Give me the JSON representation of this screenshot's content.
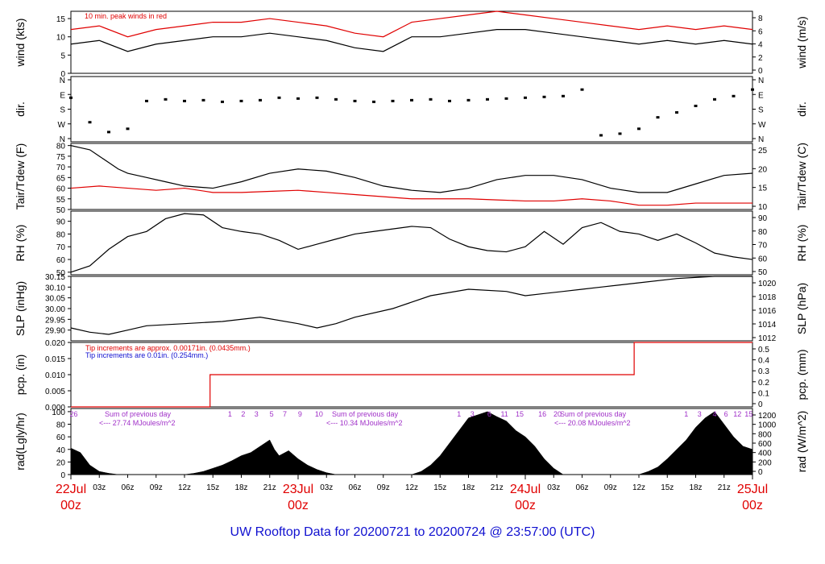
{
  "title": "UW Rooftop Data for 20200721  to  20200724 @ 23:57:00  (UTC)",
  "chart_data": [
    {
      "type": "line",
      "id": "wind",
      "ylabel_left": "wind (kts)",
      "ylabel_right": "wind (m/s)",
      "ylim": [
        0,
        17
      ],
      "ticks_left": [
        "0",
        "5",
        "10",
        "15"
      ],
      "ticks_right": [
        "0",
        "2",
        "4",
        "6",
        "8"
      ],
      "annotation": "10 min. peak winds in red",
      "series": [
        {
          "name": "wind",
          "color": "#000000",
          "x": [
            0,
            3,
            6,
            9,
            12,
            15,
            18,
            21,
            24,
            27,
            30,
            33,
            36,
            39,
            42,
            45,
            48,
            51,
            54,
            57,
            60,
            63,
            66,
            69,
            72
          ],
          "values": [
            8,
            9,
            6,
            8,
            9,
            10,
            10,
            11,
            10,
            9,
            7,
            6,
            10,
            10,
            11,
            12,
            12,
            11,
            10,
            9,
            8,
            9,
            8,
            9,
            8
          ]
        },
        {
          "name": "10 min. peak winds",
          "color": "#e00000",
          "x": [
            0,
            3,
            6,
            9,
            12,
            15,
            18,
            21,
            24,
            27,
            30,
            33,
            36,
            39,
            42,
            45,
            48,
            51,
            54,
            57,
            60,
            63,
            66,
            69,
            72
          ],
          "values": [
            12,
            13,
            10,
            12,
            13,
            14,
            14,
            15,
            14,
            13,
            11,
            10,
            14,
            15,
            16,
            17,
            16,
            15,
            14,
            13,
            12,
            13,
            12,
            13,
            12
          ]
        }
      ]
    },
    {
      "type": "scatter",
      "id": "dir",
      "ylabel_left": "dir.",
      "ylabel_right": "dir.",
      "ticks": [
        "N",
        "W",
        "S",
        "E",
        "N"
      ],
      "series": [
        {
          "name": "dir",
          "color": "#000000",
          "x": [
            0,
            2,
            4,
            6,
            8,
            10,
            12,
            14,
            16,
            18,
            20,
            22,
            24,
            26,
            28,
            30,
            32,
            34,
            36,
            38,
            40,
            42,
            44,
            46,
            48,
            50,
            52,
            54,
            56,
            58,
            60,
            62,
            64,
            66,
            68,
            70,
            72
          ],
          "values": [
            250,
            100,
            40,
            60,
            230,
            240,
            230,
            235,
            225,
            230,
            235,
            250,
            245,
            250,
            240,
            230,
            225,
            230,
            235,
            240,
            230,
            235,
            240,
            245,
            250,
            255,
            260,
            300,
            20,
            30,
            60,
            130,
            160,
            200,
            240,
            260,
            300
          ]
        }
      ]
    },
    {
      "type": "line",
      "id": "temp",
      "ylabel_left": "Tair/Tdew (F)",
      "ylabel_right": "Tair/Tdew (C)",
      "ylim": [
        50,
        81
      ],
      "ticks_left": [
        "50",
        "55",
        "60",
        "65",
        "70",
        "75",
        "80"
      ],
      "ticks_right": [
        "10",
        "15",
        "20",
        "25"
      ],
      "series": [
        {
          "name": "Tair",
          "color": "#000000",
          "x": [
            0,
            1,
            2,
            3,
            4,
            5,
            6,
            8,
            10,
            12,
            15,
            18,
            21,
            24,
            27,
            30,
            33,
            36,
            39,
            42,
            45,
            48,
            51,
            54,
            57,
            60,
            63,
            66,
            69,
            72
          ],
          "values": [
            80,
            79,
            78,
            75,
            72,
            69,
            67,
            65,
            63,
            61,
            60,
            63,
            67,
            69,
            68,
            65,
            61,
            59,
            58,
            60,
            64,
            66,
            66,
            64,
            60,
            58,
            58,
            62,
            66,
            67
          ]
        },
        {
          "name": "Tdew",
          "color": "#e00000",
          "x": [
            0,
            3,
            6,
            9,
            12,
            15,
            18,
            21,
            24,
            27,
            30,
            33,
            36,
            39,
            42,
            45,
            48,
            51,
            54,
            57,
            60,
            63,
            66,
            69,
            72
          ],
          "values": [
            60,
            61,
            60,
            59,
            60,
            58,
            58,
            58.5,
            59,
            58,
            57,
            56,
            55,
            55,
            55,
            54.5,
            54,
            54,
            55,
            54,
            52,
            52,
            53,
            53,
            53
          ]
        }
      ]
    },
    {
      "type": "line",
      "id": "rh",
      "ylabel_left": "RH (%)",
      "ylabel_right": "RH (%)",
      "ylim": [
        48,
        98
      ],
      "ticks_left": [
        "50",
        "60",
        "70",
        "80",
        "90"
      ],
      "ticks_right": [
        "50",
        "60",
        "70",
        "80",
        "90"
      ],
      "series": [
        {
          "name": "RH",
          "color": "#000000",
          "x": [
            0,
            2,
            4,
            6,
            8,
            10,
            12,
            14,
            16,
            18,
            20,
            22,
            24,
            26,
            28,
            30,
            32,
            34,
            36,
            38,
            40,
            42,
            44,
            46,
            48,
            50,
            52,
            54,
            56,
            58,
            60,
            62,
            64,
            66,
            68,
            70,
            72
          ],
          "values": [
            50,
            55,
            68,
            78,
            82,
            92,
            96,
            95,
            85,
            82,
            80,
            75,
            68,
            72,
            76,
            80,
            82,
            84,
            86,
            85,
            76,
            70,
            67,
            66,
            70,
            82,
            72,
            85,
            89,
            82,
            80,
            75,
            80,
            73,
            65,
            62,
            60
          ]
        }
      ]
    },
    {
      "type": "line",
      "id": "slp",
      "ylabel_left": "SLP (inHg)",
      "ylabel_right": "SLP (hPa)",
      "ylim": [
        29.85,
        30.15
      ],
      "ticks_left": [
        "29.90",
        "29.95",
        "30.00",
        "30.05",
        "30.10",
        "30.15"
      ],
      "ticks_right": [
        "1012",
        "1014",
        "1016",
        "1018",
        "1020"
      ],
      "series": [
        {
          "name": "SLP",
          "color": "#000000",
          "x": [
            0,
            2,
            4,
            6,
            8,
            12,
            16,
            20,
            24,
            26,
            28,
            30,
            34,
            38,
            42,
            46,
            48,
            50,
            52,
            54,
            56,
            60,
            64,
            68,
            70,
            72
          ],
          "values": [
            29.91,
            29.89,
            29.88,
            29.9,
            29.92,
            29.93,
            29.94,
            29.96,
            29.93,
            29.91,
            29.93,
            29.96,
            30.0,
            30.06,
            30.09,
            30.08,
            30.06,
            30.07,
            30.08,
            30.09,
            30.1,
            30.12,
            30.14,
            30.15,
            30.15,
            30.15
          ]
        }
      ]
    },
    {
      "type": "line",
      "id": "pcp",
      "ylabel_left": "pcp. (in)",
      "ylabel_right": "pcp. (mm)",
      "ylim": [
        0,
        0.02
      ],
      "ticks_left": [
        "0.000",
        "0.005",
        "0.010",
        "0.015",
        "0.020"
      ],
      "ticks_right": [
        "0",
        "0.1",
        "0.2",
        "0.3",
        "0.4",
        "0.5"
      ],
      "note_red": "Tip increments are approx. 0.00171in. (0.0435mm.)",
      "note_blue": "Tip increments are 0.01in. (0.254mm.)",
      "series": [
        {
          "name": "pcp",
          "color": "#e00000",
          "x": [
            0,
            14.7,
            14.7,
            59.5,
            59.5,
            72
          ],
          "values": [
            0,
            0,
            0.01,
            0.01,
            0.02,
            0.02
          ]
        }
      ]
    },
    {
      "type": "area",
      "id": "rad",
      "ylabel_left": "rad(Lgly/hr)",
      "ylabel_right": "rad (W/m^2)",
      "ylim": [
        0,
        105
      ],
      "ticks_left": [
        "0",
        "20",
        "40",
        "60",
        "80",
        "100"
      ],
      "ticks_right": [
        "0",
        "200",
        "400",
        "600",
        "800",
        "1000",
        "1200"
      ],
      "daily_notes": [
        {
          "line1": "Sum of previous day",
          "line2": "<--- 27.74 MJoules/m^2"
        },
        {
          "line1": "Sum of previous day",
          "line2": "<--- 10.34 MJoules/m^2"
        },
        {
          "line1": "Sum of previous day",
          "line2": "<--- 20.08 MJoules/m^2"
        }
      ],
      "hour_markers": [
        {
          "label": "26",
          "x": 0.3
        },
        {
          "label": "1",
          "x": 16.8
        },
        {
          "label": "2",
          "x": 18.2
        },
        {
          "label": "3",
          "x": 19.6
        },
        {
          "label": "5",
          "x": 21.2
        },
        {
          "label": "7",
          "x": 22.6
        },
        {
          "label": "9",
          "x": 24.2
        },
        {
          "label": "10",
          "x": 26.2
        },
        {
          "label": "1",
          "x": 41.0
        },
        {
          "label": "3",
          "x": 42.4
        },
        {
          "label": "6",
          "x": 44.2
        },
        {
          "label": "11",
          "x": 45.8
        },
        {
          "label": "15",
          "x": 47.4
        },
        {
          "label": "16",
          "x": 49.8
        },
        {
          "label": "20",
          "x": 51.4
        },
        {
          "label": "1",
          "x": 65.0
        },
        {
          "label": "3",
          "x": 66.4
        },
        {
          "label": "4",
          "x": 68.0
        },
        {
          "label": "6",
          "x": 69.2
        },
        {
          "label": "12",
          "x": 70.4
        },
        {
          "label": "15",
          "x": 71.6
        }
      ],
      "series": [
        {
          "name": "rad",
          "color": "#000000",
          "x": [
            0,
            1,
            2,
            3,
            4,
            5,
            12,
            13,
            14,
            15,
            16,
            17,
            18,
            19,
            20,
            21,
            21.5,
            22,
            23,
            24,
            25,
            26,
            27,
            28,
            36,
            37,
            38,
            39,
            40,
            41,
            42,
            43,
            44,
            45,
            46,
            47,
            48,
            49,
            50,
            51,
            52,
            60,
            61,
            62,
            63,
            64,
            65,
            66,
            67,
            68,
            69,
            70,
            71,
            72
          ],
          "values": [
            42,
            35,
            15,
            5,
            2,
            0,
            0,
            2,
            5,
            10,
            15,
            22,
            30,
            35,
            45,
            55,
            40,
            30,
            38,
            25,
            15,
            8,
            3,
            0,
            0,
            5,
            15,
            30,
            50,
            70,
            90,
            95,
            100,
            92,
            85,
            70,
            60,
            45,
            25,
            10,
            0,
            0,
            5,
            12,
            25,
            40,
            55,
            75,
            90,
            100,
            80,
            60,
            45,
            40
          ]
        }
      ]
    }
  ],
  "x_axis": {
    "ticks": [
      "03z",
      "06z",
      "09z",
      "12z",
      "15z",
      "18z",
      "21z",
      "03z",
      "06z",
      "09z",
      "12z",
      "15z",
      "18z",
      "21z",
      "03z",
      "06z",
      "09z",
      "12z",
      "15z",
      "18z",
      "21z"
    ],
    "tick_hours": [
      3,
      6,
      9,
      12,
      15,
      18,
      21,
      27,
      30,
      33,
      36,
      39,
      42,
      45,
      51,
      54,
      57,
      60,
      63,
      66,
      69
    ],
    "date_labels": [
      {
        "date": "22Jul",
        "hour": "00z",
        "x": 0
      },
      {
        "date": "23Jul",
        "hour": "00z",
        "x": 24
      },
      {
        "date": "24Jul",
        "hour": "00z",
        "x": 48
      },
      {
        "date": "25Jul",
        "hour": "00z",
        "x": 72
      }
    ]
  }
}
